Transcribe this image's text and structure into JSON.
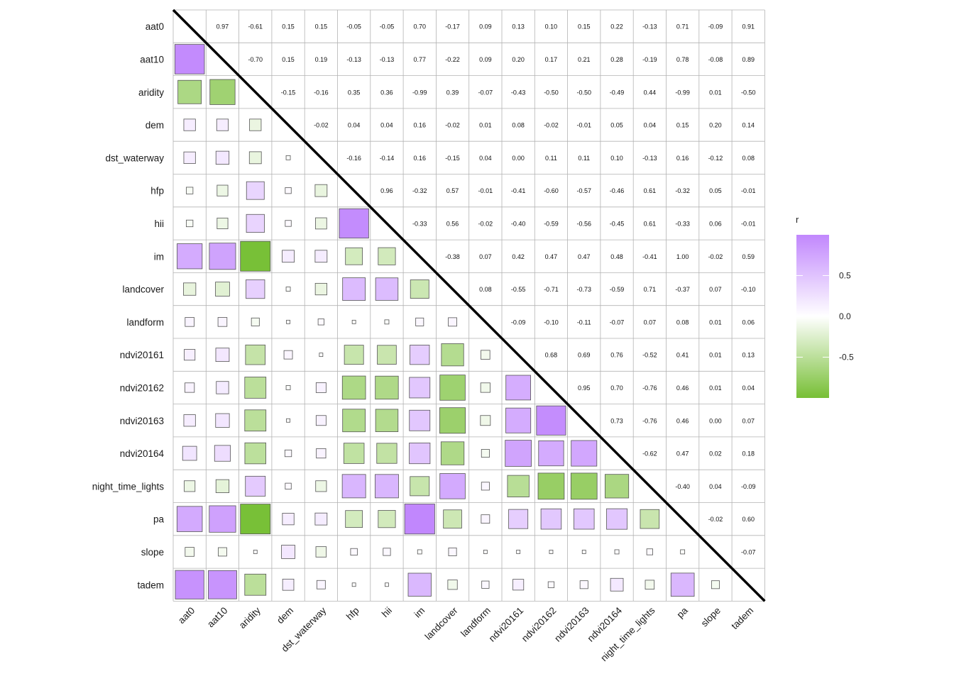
{
  "chart_data": {
    "type": "heatmap",
    "variables": [
      "aat0",
      "aat10",
      "aridity",
      "dem",
      "dst_waterway",
      "hfp",
      "hii",
      "im",
      "landcover",
      "landform",
      "ndvi20161",
      "ndvi20162",
      "ndvi20163",
      "ndvi20164",
      "night_time_lights",
      "pa",
      "slope",
      "tadem"
    ],
    "matrix": [
      [
        1.0,
        0.97,
        -0.61,
        0.15,
        0.15,
        -0.05,
        -0.05,
        0.7,
        -0.17,
        0.09,
        0.13,
        0.1,
        0.15,
        0.22,
        -0.13,
        0.71,
        -0.09,
        0.91
      ],
      [
        0.97,
        1.0,
        -0.7,
        0.15,
        0.19,
        -0.13,
        -0.13,
        0.77,
        -0.22,
        0.09,
        0.2,
        0.17,
        0.21,
        0.28,
        -0.19,
        0.78,
        -0.08,
        0.89
      ],
      [
        -0.61,
        -0.7,
        1.0,
        -0.15,
        -0.16,
        0.35,
        0.36,
        -0.99,
        0.39,
        -0.07,
        -0.43,
        -0.5,
        -0.5,
        -0.49,
        0.44,
        -0.99,
        0.01,
        -0.5
      ],
      [
        0.15,
        0.15,
        -0.15,
        1.0,
        -0.02,
        0.04,
        0.04,
        0.16,
        -0.02,
        0.01,
        0.08,
        -0.02,
        -0.01,
        0.05,
        0.04,
        0.15,
        0.2,
        0.14
      ],
      [
        0.15,
        0.19,
        -0.16,
        -0.02,
        1.0,
        -0.16,
        -0.14,
        0.16,
        -0.15,
        0.04,
        0.0,
        0.11,
        0.11,
        0.1,
        -0.13,
        0.16,
        -0.12,
        0.08
      ],
      [
        -0.05,
        -0.13,
        0.35,
        0.04,
        -0.16,
        1.0,
        0.96,
        -0.32,
        0.57,
        -0.01,
        -0.41,
        -0.6,
        -0.57,
        -0.46,
        0.61,
        -0.32,
        0.05,
        -0.01
      ],
      [
        -0.05,
        -0.13,
        0.36,
        0.04,
        -0.14,
        0.96,
        1.0,
        -0.33,
        0.56,
        -0.02,
        -0.4,
        -0.59,
        -0.56,
        -0.45,
        0.61,
        -0.33,
        0.06,
        -0.01
      ],
      [
        0.7,
        0.77,
        -0.99,
        0.16,
        0.16,
        -0.32,
        -0.33,
        1.0,
        -0.38,
        0.07,
        0.42,
        0.47,
        0.47,
        0.48,
        -0.41,
        1.0,
        -0.02,
        0.59
      ],
      [
        -0.17,
        -0.22,
        0.39,
        -0.02,
        -0.15,
        0.57,
        0.56,
        -0.38,
        1.0,
        0.08,
        -0.55,
        -0.71,
        -0.73,
        -0.59,
        0.71,
        -0.37,
        0.07,
        -0.1
      ],
      [
        0.09,
        0.09,
        -0.07,
        0.01,
        0.04,
        -0.01,
        -0.02,
        0.07,
        0.08,
        1.0,
        -0.09,
        -0.1,
        -0.11,
        -0.07,
        0.07,
        0.08,
        0.01,
        0.06
      ],
      [
        0.13,
        0.2,
        -0.43,
        0.08,
        0.0,
        -0.41,
        -0.4,
        0.42,
        -0.55,
        -0.09,
        1.0,
        0.68,
        0.69,
        0.76,
        -0.52,
        0.41,
        0.01,
        0.13
      ],
      [
        0.1,
        0.17,
        -0.5,
        -0.02,
        0.11,
        -0.6,
        -0.59,
        0.47,
        -0.71,
        -0.1,
        0.68,
        1.0,
        0.95,
        0.7,
        -0.76,
        0.46,
        0.01,
        0.04
      ],
      [
        0.15,
        0.21,
        -0.5,
        -0.01,
        0.11,
        -0.57,
        -0.56,
        0.47,
        -0.73,
        -0.11,
        0.69,
        0.95,
        1.0,
        0.73,
        -0.76,
        0.46,
        0.0,
        0.07
      ],
      [
        0.22,
        0.28,
        -0.49,
        0.05,
        0.1,
        -0.46,
        -0.45,
        0.48,
        -0.59,
        -0.07,
        0.76,
        0.7,
        0.73,
        1.0,
        -0.62,
        0.47,
        0.02,
        0.18
      ],
      [
        -0.13,
        -0.19,
        0.44,
        0.04,
        -0.13,
        0.61,
        0.61,
        -0.41,
        0.71,
        0.07,
        -0.52,
        -0.76,
        -0.76,
        -0.62,
        1.0,
        -0.4,
        0.04,
        -0.09
      ],
      [
        0.71,
        0.78,
        -0.99,
        0.15,
        0.16,
        -0.32,
        -0.33,
        1.0,
        -0.37,
        0.08,
        0.41,
        0.46,
        0.46,
        0.47,
        -0.4,
        1.0,
        -0.02,
        0.6
      ],
      [
        -0.09,
        -0.08,
        0.01,
        0.2,
        -0.12,
        0.05,
        0.06,
        -0.02,
        0.07,
        0.01,
        0.01,
        0.01,
        0.0,
        0.02,
        0.04,
        -0.02,
        1.0,
        -0.07
      ],
      [
        0.91,
        0.89,
        -0.5,
        0.14,
        0.08,
        -0.01,
        -0.01,
        0.59,
        -0.1,
        0.06,
        0.13,
        0.04,
        0.07,
        0.18,
        -0.09,
        0.6,
        -0.07,
        1.0
      ]
    ],
    "lower_triangle": "squares sized by |r|, filled by color scale",
    "upper_triangle": "r values as text (2 decimals)",
    "diagonal": "blank with black diagonal line",
    "legend": {
      "title": "r",
      "ticks": [
        0.5,
        0.0,
        -0.5
      ],
      "tick_labels": [
        "0.5",
        "0.0",
        "-0.5"
      ],
      "range": [
        -1,
        1
      ],
      "placement": "right",
      "colors": {
        "positive": "#c187fd",
        "zero": "#ffffff",
        "negative": "#77bf35"
      }
    },
    "grid": true
  }
}
